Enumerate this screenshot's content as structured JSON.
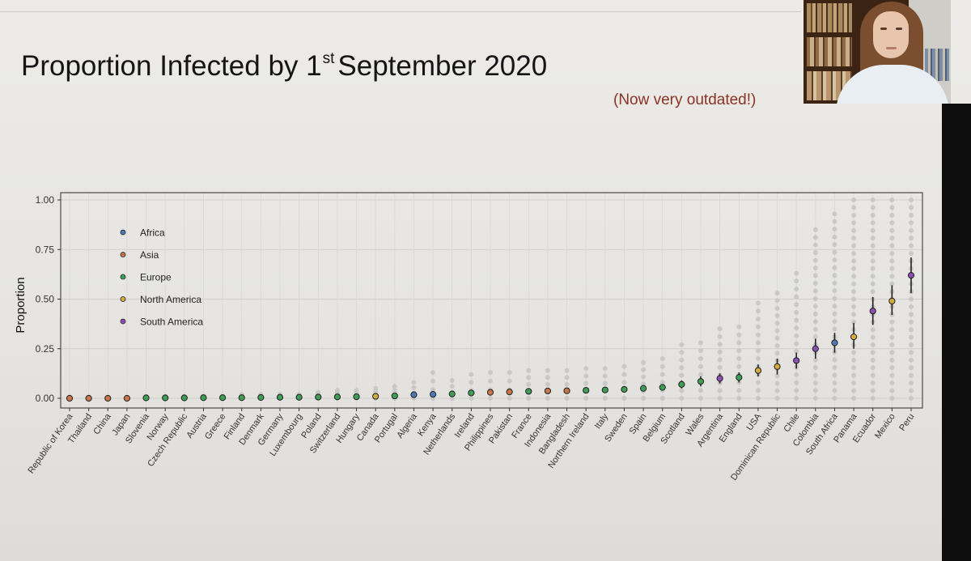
{
  "slide": {
    "title_main": "Proportion Infected by 1",
    "title_sup": "st",
    "title_tail": "September 2020",
    "subtitle": "(Now very outdated!)"
  },
  "video": {
    "presenter_label": "presenter webcam"
  },
  "colors": {
    "Africa": "#4e79b5",
    "Asia": "#c5764b",
    "Europe": "#3e9e57",
    "North America": "#d3ad3c",
    "South America": "#8a4fb0",
    "grey_points": "#c4c4c4"
  },
  "chart_data": {
    "type": "scatter",
    "title": "",
    "xlabel": "",
    "ylabel": "Proportion",
    "ylim": [
      0,
      1
    ],
    "yticks": [
      0,
      0.25,
      0.5,
      0.75,
      1.0
    ],
    "ytick_labels": [
      "0.00",
      "0.25",
      "0.50",
      "0.75",
      "1.00"
    ],
    "legend": {
      "placement": "top-left",
      "entries": [
        "Africa",
        "Asia",
        "Europe",
        "North America",
        "South America"
      ]
    },
    "points": [
      {
        "country": "Republic of Korea",
        "region": "Asia",
        "estimate": 0.0,
        "lo": 0.0,
        "hi": 0.0,
        "spread_max": 0.0
      },
      {
        "country": "Thailand",
        "region": "Asia",
        "estimate": 0.0,
        "lo": 0.0,
        "hi": 0.0,
        "spread_max": 0.0
      },
      {
        "country": "China",
        "region": "Asia",
        "estimate": 0.0,
        "lo": 0.0,
        "hi": 0.0,
        "spread_max": 0.0
      },
      {
        "country": "Japan",
        "region": "Asia",
        "estimate": 0.0,
        "lo": 0.0,
        "hi": 0.0,
        "spread_max": 0.0
      },
      {
        "country": "Slovenia",
        "region": "Europe",
        "estimate": 0.002,
        "lo": 0.0,
        "hi": 0.004,
        "spread_max": 0.01
      },
      {
        "country": "Norway",
        "region": "Europe",
        "estimate": 0.002,
        "lo": 0.0,
        "hi": 0.004,
        "spread_max": 0.01
      },
      {
        "country": "Czech Republic",
        "region": "Europe",
        "estimate": 0.002,
        "lo": 0.0,
        "hi": 0.004,
        "spread_max": 0.01
      },
      {
        "country": "Austria",
        "region": "Europe",
        "estimate": 0.003,
        "lo": 0.001,
        "hi": 0.005,
        "spread_max": 0.01
      },
      {
        "country": "Greece",
        "region": "Europe",
        "estimate": 0.003,
        "lo": 0.001,
        "hi": 0.005,
        "spread_max": 0.01
      },
      {
        "country": "Finland",
        "region": "Europe",
        "estimate": 0.003,
        "lo": 0.001,
        "hi": 0.005,
        "spread_max": 0.02
      },
      {
        "country": "Denmark",
        "region": "Europe",
        "estimate": 0.004,
        "lo": 0.001,
        "hi": 0.006,
        "spread_max": 0.02
      },
      {
        "country": "Germany",
        "region": "Europe",
        "estimate": 0.005,
        "lo": 0.002,
        "hi": 0.008,
        "spread_max": 0.02
      },
      {
        "country": "Luxembourg",
        "region": "Europe",
        "estimate": 0.005,
        "lo": 0.002,
        "hi": 0.009,
        "spread_max": 0.02
      },
      {
        "country": "Poland",
        "region": "Europe",
        "estimate": 0.006,
        "lo": 0.003,
        "hi": 0.01,
        "spread_max": 0.03
      },
      {
        "country": "Switzerland",
        "region": "Europe",
        "estimate": 0.007,
        "lo": 0.003,
        "hi": 0.011,
        "spread_max": 0.04
      },
      {
        "country": "Hungary",
        "region": "Europe",
        "estimate": 0.008,
        "lo": 0.004,
        "hi": 0.012,
        "spread_max": 0.04
      },
      {
        "country": "Canada",
        "region": "North America",
        "estimate": 0.01,
        "lo": 0.005,
        "hi": 0.015,
        "spread_max": 0.05
      },
      {
        "country": "Portugal",
        "region": "Europe",
        "estimate": 0.012,
        "lo": 0.006,
        "hi": 0.018,
        "spread_max": 0.06
      },
      {
        "country": "Algeria",
        "region": "Africa",
        "estimate": 0.018,
        "lo": 0.01,
        "hi": 0.026,
        "spread_max": 0.08
      },
      {
        "country": "Kenya",
        "region": "Africa",
        "estimate": 0.02,
        "lo": 0.012,
        "hi": 0.028,
        "spread_max": 0.13
      },
      {
        "country": "Netherlands",
        "region": "Europe",
        "estimate": 0.022,
        "lo": 0.014,
        "hi": 0.03,
        "spread_max": 0.09
      },
      {
        "country": "Ireland",
        "region": "Europe",
        "estimate": 0.027,
        "lo": 0.018,
        "hi": 0.036,
        "spread_max": 0.12
      },
      {
        "country": "Philippines",
        "region": "Asia",
        "estimate": 0.03,
        "lo": 0.02,
        "hi": 0.04,
        "spread_max": 0.13
      },
      {
        "country": "Pakistan",
        "region": "Asia",
        "estimate": 0.032,
        "lo": 0.022,
        "hi": 0.042,
        "spread_max": 0.13
      },
      {
        "country": "France",
        "region": "Europe",
        "estimate": 0.035,
        "lo": 0.024,
        "hi": 0.046,
        "spread_max": 0.14
      },
      {
        "country": "Indonesia",
        "region": "Asia",
        "estimate": 0.037,
        "lo": 0.026,
        "hi": 0.048,
        "spread_max": 0.14
      },
      {
        "country": "Bangladesh",
        "region": "Asia",
        "estimate": 0.038,
        "lo": 0.027,
        "hi": 0.05,
        "spread_max": 0.14
      },
      {
        "country": "Northern Ireland",
        "region": "Europe",
        "estimate": 0.04,
        "lo": 0.028,
        "hi": 0.052,
        "spread_max": 0.15
      },
      {
        "country": "Italy",
        "region": "Europe",
        "estimate": 0.042,
        "lo": 0.03,
        "hi": 0.055,
        "spread_max": 0.15
      },
      {
        "country": "Sweden",
        "region": "Europe",
        "estimate": 0.045,
        "lo": 0.032,
        "hi": 0.058,
        "spread_max": 0.16
      },
      {
        "country": "Spain",
        "region": "Europe",
        "estimate": 0.05,
        "lo": 0.036,
        "hi": 0.064,
        "spread_max": 0.18
      },
      {
        "country": "Belgium",
        "region": "Europe",
        "estimate": 0.055,
        "lo": 0.04,
        "hi": 0.07,
        "spread_max": 0.2
      },
      {
        "country": "Scotland",
        "region": "Europe",
        "estimate": 0.07,
        "lo": 0.05,
        "hi": 0.09,
        "spread_max": 0.27
      },
      {
        "country": "Wales",
        "region": "Europe",
        "estimate": 0.085,
        "lo": 0.06,
        "hi": 0.11,
        "spread_max": 0.28
      },
      {
        "country": "Argentina",
        "region": "South America",
        "estimate": 0.1,
        "lo": 0.075,
        "hi": 0.125,
        "spread_max": 0.35
      },
      {
        "country": "England",
        "region": "Europe",
        "estimate": 0.105,
        "lo": 0.08,
        "hi": 0.13,
        "spread_max": 0.36
      },
      {
        "country": "USA",
        "region": "North America",
        "estimate": 0.14,
        "lo": 0.11,
        "hi": 0.17,
        "spread_max": 0.48
      },
      {
        "country": "Dominican Republic",
        "region": "North America",
        "estimate": 0.16,
        "lo": 0.12,
        "hi": 0.2,
        "spread_max": 0.53
      },
      {
        "country": "Chile",
        "region": "South America",
        "estimate": 0.19,
        "lo": 0.15,
        "hi": 0.23,
        "spread_max": 0.63
      },
      {
        "country": "Colombia",
        "region": "South America",
        "estimate": 0.25,
        "lo": 0.2,
        "hi": 0.3,
        "spread_max": 0.85
      },
      {
        "country": "South Africa",
        "region": "Africa",
        "estimate": 0.28,
        "lo": 0.23,
        "hi": 0.33,
        "spread_max": 0.93
      },
      {
        "country": "Panama",
        "region": "North America",
        "estimate": 0.31,
        "lo": 0.25,
        "hi": 0.38,
        "spread_max": 1.0
      },
      {
        "country": "Ecuador",
        "region": "South America",
        "estimate": 0.44,
        "lo": 0.37,
        "hi": 0.51,
        "spread_max": 1.0
      },
      {
        "country": "Mexico",
        "region": "North America",
        "estimate": 0.49,
        "lo": 0.42,
        "hi": 0.57,
        "spread_max": 1.0
      },
      {
        "country": "Peru",
        "region": "South America",
        "estimate": 0.62,
        "lo": 0.53,
        "hi": 0.71,
        "spread_max": 1.0
      }
    ]
  }
}
